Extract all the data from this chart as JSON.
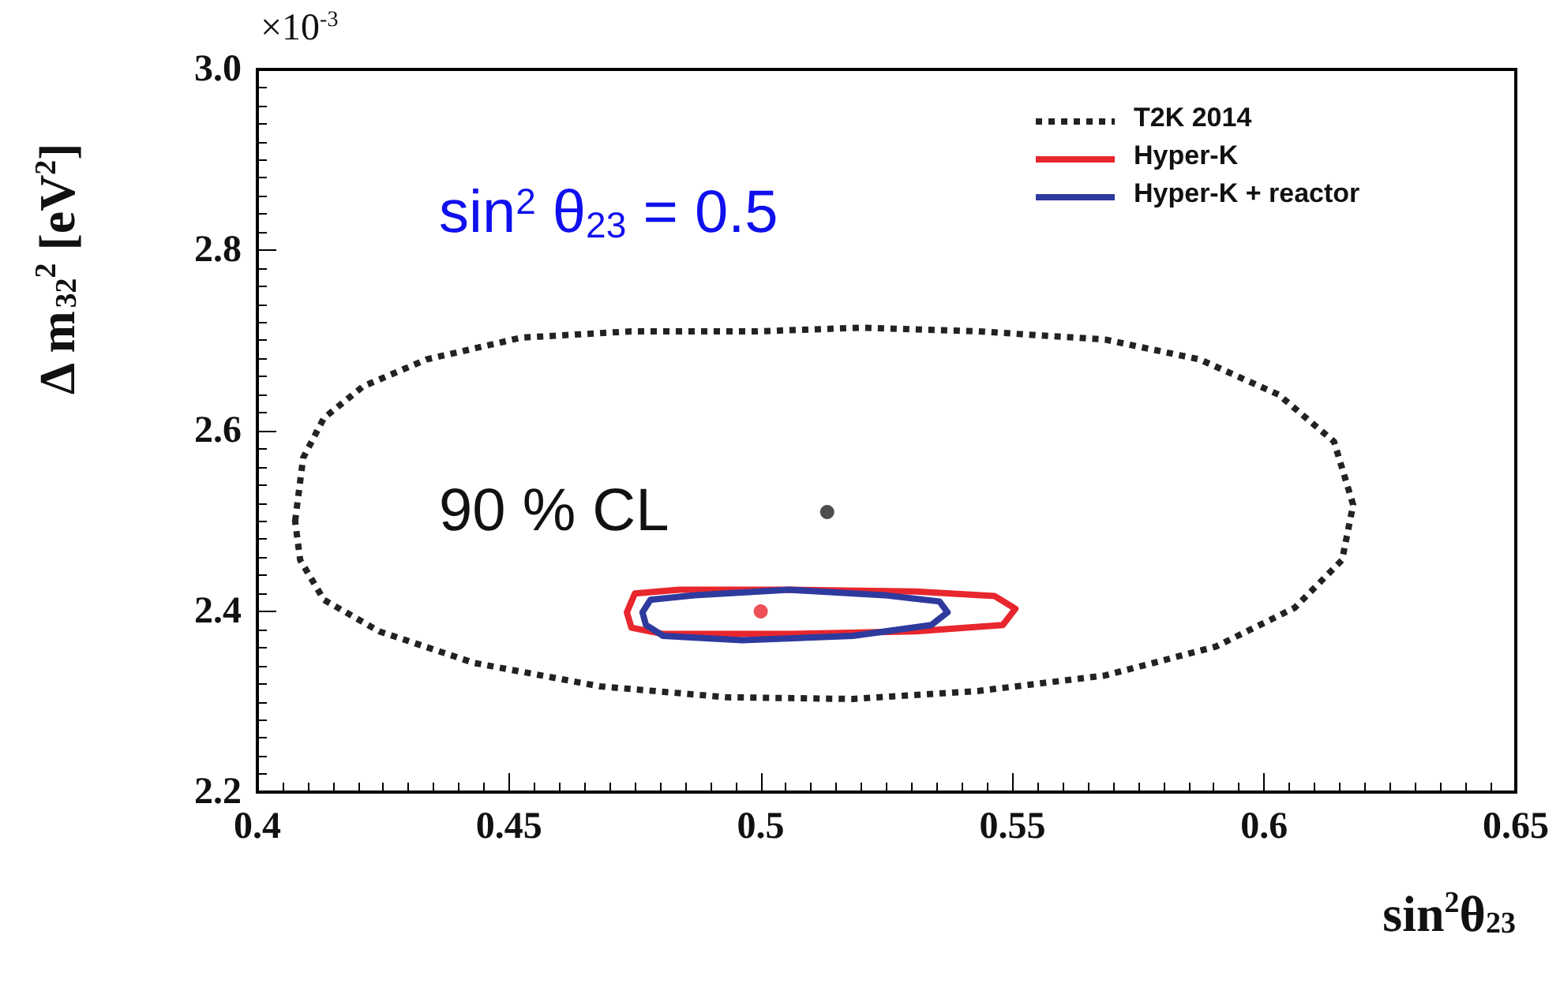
{
  "chart_data": {
    "type": "scatter",
    "xlabel": "sin$^{2}$θ$_{23}$",
    "ylabel": "Δ m$_{32}$$^{2}$ [eV$^{2}$]",
    "annotations": [
      "×10$^{-3}$",
      "sin$^{2}$ θ$_{23}$ = 0.5",
      "90 % CL",
      "T2K 2014",
      "Hyper-K",
      "Hyper-K + reactor"
    ],
    "xlim": [
      0.4,
      0.65
    ],
    "xticks": [
      0.4,
      0.45,
      0.5,
      0.55,
      0.6,
      0.65
    ],
    "ylim": [
      2.2,
      3.0
    ],
    "yticks": [
      2.2,
      2.4,
      2.6,
      2.8,
      {
        "value": 3.0,
        "label": "3.0"
      }
    ],
    "grid": false,
    "marker": "circle",
    "series": [
      {
        "color": "#222222",
        "x": [
          0.5132
        ],
        "values": [
          2.51
        ]
      },
      {
        "color": "#e8262d",
        "x": [
          0.5
        ],
        "values": [
          2.4
        ]
      }
    ]
  }
}
